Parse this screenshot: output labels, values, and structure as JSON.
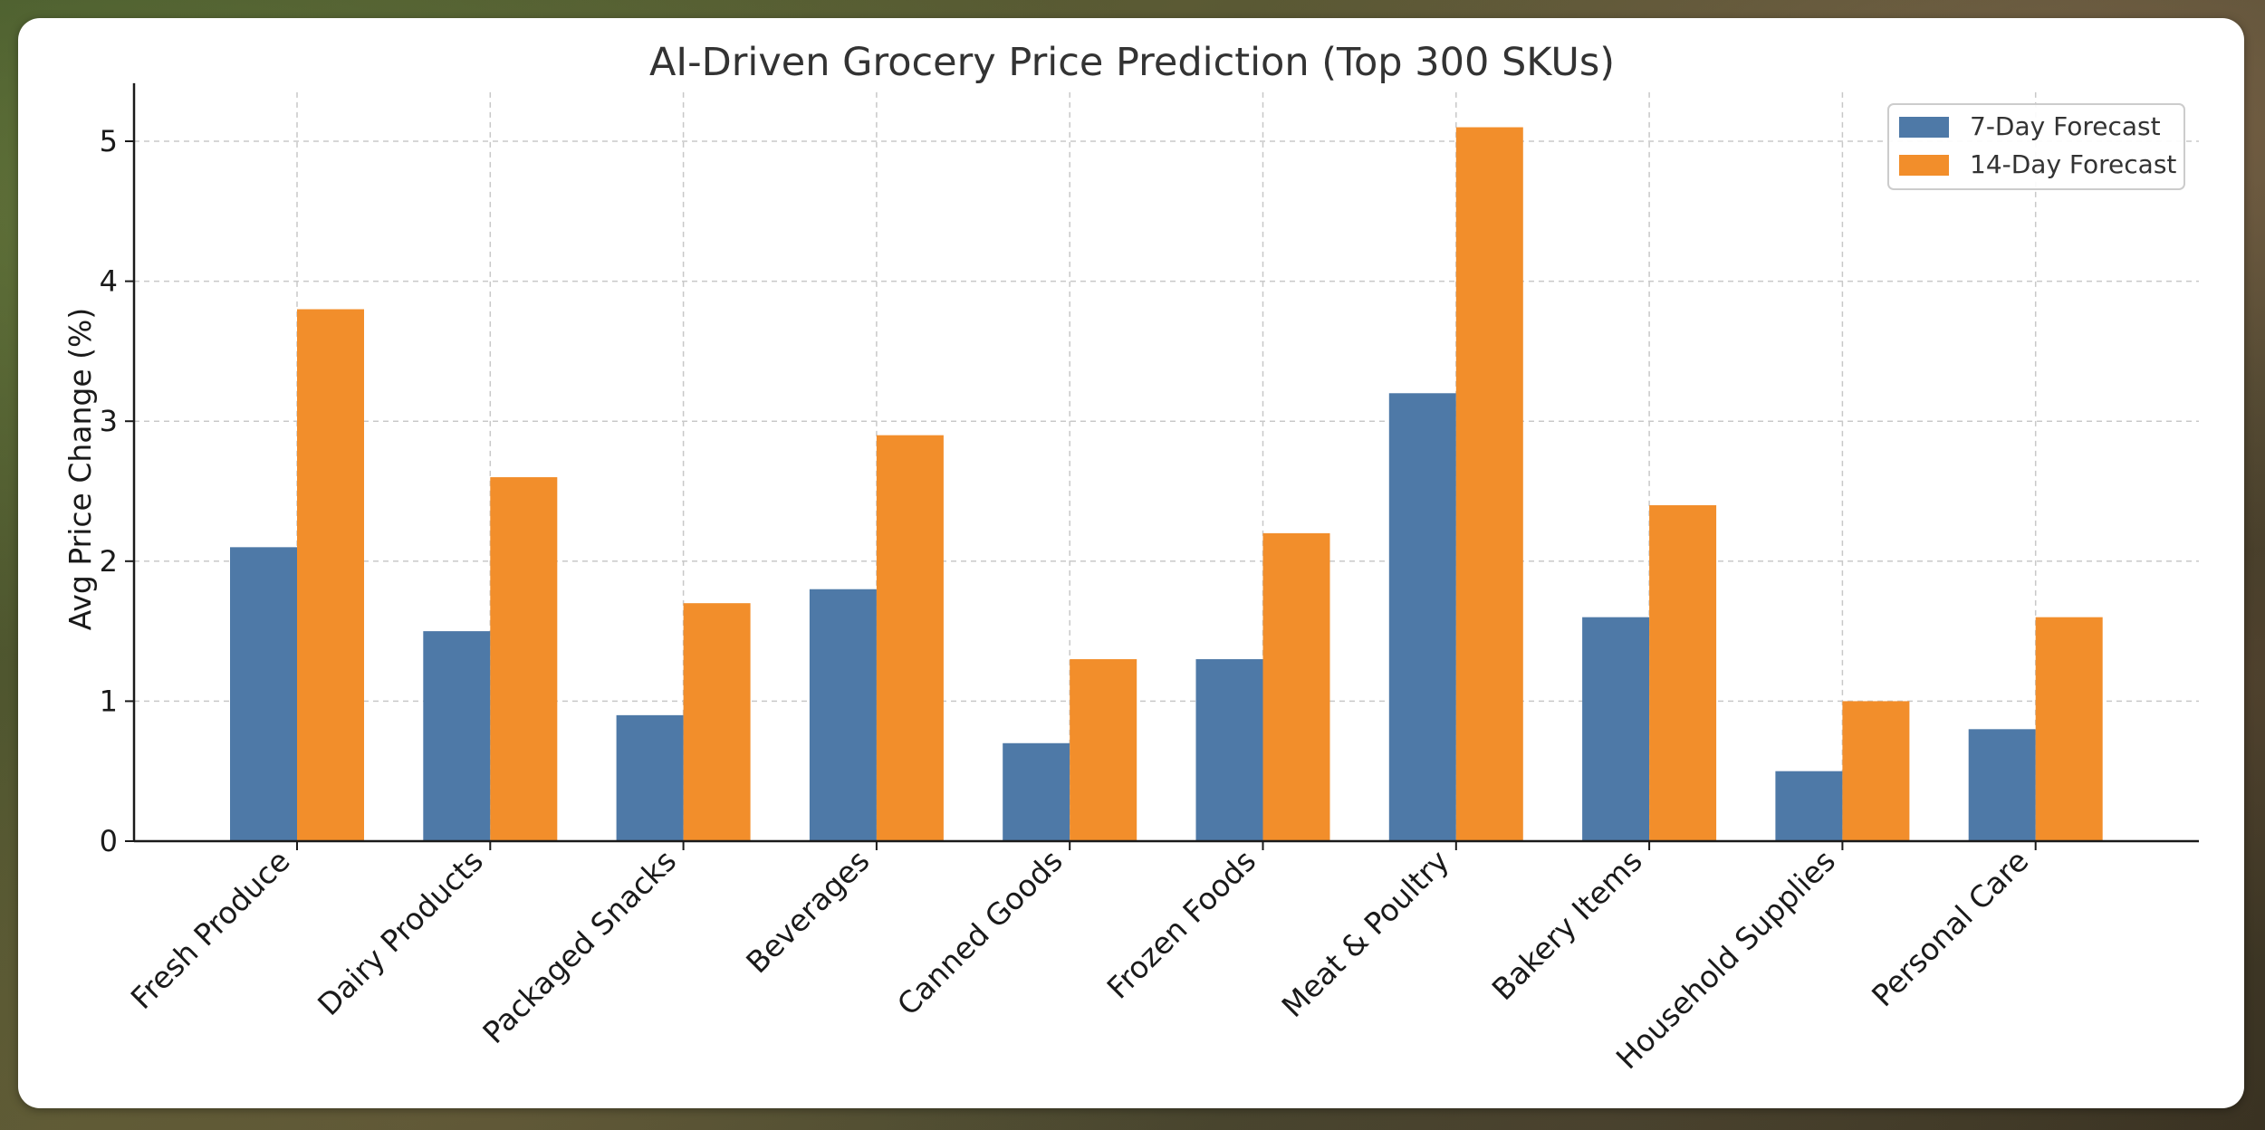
{
  "chart_data": {
    "type": "bar",
    "title": "AI-Driven Grocery Price Prediction (Top 300 SKUs)",
    "xlabel": "",
    "ylabel": "Avg Price Change (%)",
    "categories": [
      "Fresh Produce",
      "Dairy Products",
      "Packaged Snacks",
      "Beverages",
      "Canned Goods",
      "Frozen Foods",
      "Meat & Poultry",
      "Bakery Items",
      "Household Supplies",
      "Personal Care"
    ],
    "series": [
      {
        "name": "7-Day Forecast",
        "color": "#4e79a7",
        "values": [
          2.1,
          1.5,
          0.9,
          1.8,
          0.7,
          1.3,
          3.2,
          1.6,
          0.5,
          0.8
        ]
      },
      {
        "name": "14-Day Forecast",
        "color": "#f28e2b",
        "values": [
          3.8,
          2.6,
          1.7,
          2.9,
          1.3,
          2.2,
          5.1,
          2.4,
          1.0,
          1.6
        ]
      }
    ],
    "ylim": [
      0,
      5.35
    ],
    "yticks": [
      0,
      1,
      2,
      3,
      4,
      5
    ],
    "grid": true,
    "legend_position": "top-right"
  }
}
